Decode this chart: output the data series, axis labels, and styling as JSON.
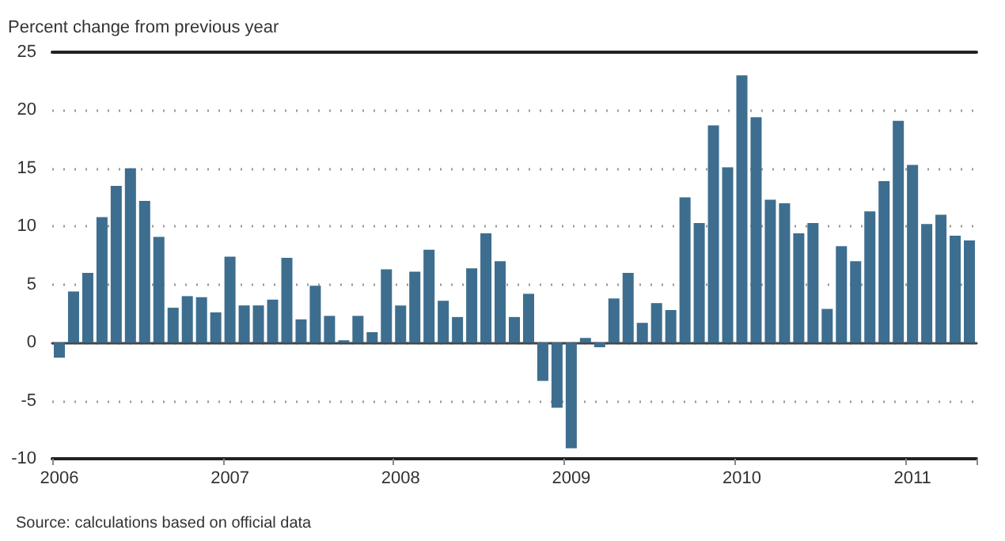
{
  "chart_data": {
    "type": "bar",
    "ylabel": "Percent change from previous year",
    "annotations": [
      "Source: calculations based on official data"
    ],
    "categories": [
      "2006",
      null,
      null,
      null,
      null,
      null,
      null,
      null,
      null,
      null,
      null,
      null,
      "2007",
      null,
      null,
      null,
      null,
      null,
      null,
      null,
      null,
      null,
      null,
      null,
      "2008",
      null,
      null,
      null,
      null,
      null,
      null,
      null,
      null,
      null,
      null,
      null,
      "2009",
      null,
      null,
      null,
      null,
      null,
      null,
      null,
      null,
      null,
      null,
      null,
      "2010",
      null,
      null,
      null,
      null,
      null,
      null,
      null,
      null,
      null,
      null,
      null,
      "2011",
      null,
      null,
      null,
      null
    ],
    "values": [
      -1.3,
      4.4,
      6.0,
      10.8,
      13.5,
      15.0,
      12.2,
      9.1,
      3.0,
      4.0,
      3.9,
      2.6,
      7.4,
      3.2,
      3.2,
      3.7,
      7.3,
      2.0,
      4.9,
      2.3,
      0.2,
      2.3,
      0.9,
      6.3,
      3.2,
      6.1,
      8.0,
      3.6,
      2.2,
      6.4,
      9.4,
      7.0,
      2.2,
      4.2,
      -3.3,
      -5.6,
      -9.1,
      0.4,
      -0.4,
      3.8,
      6.0,
      1.7,
      3.4,
      2.8,
      12.5,
      10.3,
      18.7,
      15.1,
      23.0,
      19.4,
      12.3,
      12.0,
      9.4,
      10.3,
      2.9,
      8.3,
      7.0,
      11.3,
      13.9,
      19.1,
      15.3,
      10.2,
      11.0,
      9.2,
      8.8
    ],
    "color": "#3d6e8f",
    "ylim": [
      -10,
      25
    ],
    "yticks": [
      -10,
      -5,
      0,
      5,
      10,
      15,
      20,
      25
    ],
    "grid": "y"
  }
}
